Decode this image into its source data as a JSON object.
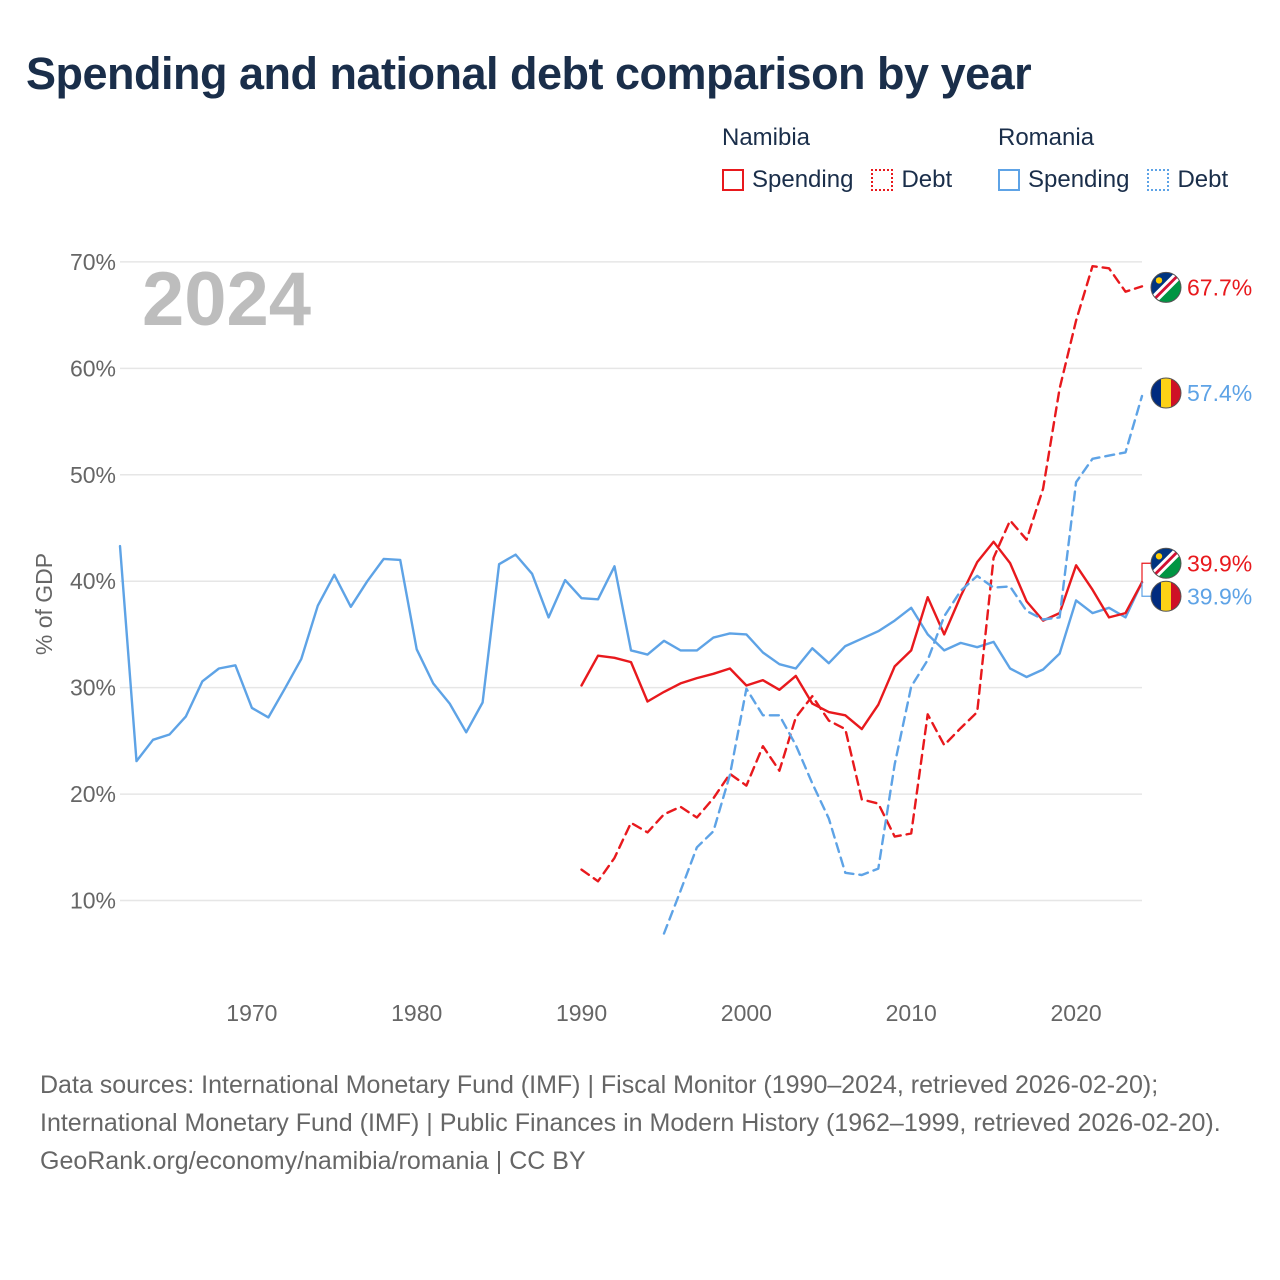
{
  "title": "Spending and national debt comparison by year",
  "legend": {
    "namibia": {
      "country": "Namibia",
      "spending": "Spending",
      "debt": "Debt"
    },
    "romania": {
      "country": "Romania",
      "spending": "Spending",
      "debt": "Debt"
    }
  },
  "colors": {
    "namibia": "#e8191d",
    "romania": "#5ea3e6",
    "grid": "#e6e6e6",
    "axis_text": "#666666",
    "year_watermark": "#bdbdbd"
  },
  "footer": {
    "sources": "Data sources: International Monetary Fund (IMF) | Fiscal Monitor (1990–2024, retrieved 2026-02-20); International Monetary Fund (IMF) | Public Finances in Modern History (1962–1999, retrieved 2026-02-20).",
    "credit": "GeoRank.org/economy/namibia/romania | CC BY"
  },
  "chart_data": {
    "type": "line",
    "year_label": "2024",
    "ylabel": "% of GDP",
    "xlabel": "",
    "xlim": [
      1962,
      2024
    ],
    "ylim": [
      3,
      73
    ],
    "yticks": [
      10,
      20,
      30,
      40,
      50,
      60,
      70
    ],
    "ytick_labels": [
      "10%",
      "20%",
      "30%",
      "40%",
      "50%",
      "60%",
      "70%"
    ],
    "xticks": [
      1970,
      1980,
      1990,
      2000,
      2010,
      2020
    ],
    "xtick_labels": [
      "1970",
      "1980",
      "1990",
      "2000",
      "2010",
      "2020"
    ],
    "end_labels": [
      {
        "series": "Namibia Debt",
        "text": "67.7%"
      },
      {
        "series": "Romania Debt",
        "text": "57.4%"
      },
      {
        "series": "Namibia Spending",
        "text": "39.9%"
      },
      {
        "series": "Romania Spending",
        "text": "39.9%"
      }
    ],
    "series": [
      {
        "name": "Romania Spending",
        "country": "Romania",
        "kind": "spending",
        "style": "solid",
        "x": [
          1962,
          1963,
          1964,
          1965,
          1966,
          1967,
          1968,
          1969,
          1970,
          1971,
          1972,
          1973,
          1974,
          1975,
          1976,
          1977,
          1978,
          1979,
          1980,
          1981,
          1982,
          1983,
          1984,
          1985,
          1986,
          1987,
          1988,
          1989,
          1990,
          1991,
          1992,
          1993,
          1994,
          1995,
          1996,
          1997,
          1998,
          1999,
          2000,
          2001,
          2002,
          2003,
          2004,
          2005,
          2006,
          2007,
          2008,
          2009,
          2010,
          2011,
          2012,
          2013,
          2014,
          2015,
          2016,
          2017,
          2018,
          2019,
          2020,
          2021,
          2022,
          2023,
          2024
        ],
        "values": [
          43.3,
          23.1,
          25.1,
          25.6,
          27.3,
          30.6,
          31.8,
          32.1,
          28.1,
          27.2,
          29.9,
          32.7,
          37.7,
          40.6,
          37.6,
          40.0,
          42.1,
          42.0,
          33.6,
          30.4,
          28.5,
          25.8,
          28.6,
          41.6,
          42.5,
          40.7,
          36.6,
          40.1,
          38.4,
          38.3,
          41.4,
          33.5,
          33.1,
          34.4,
          33.5,
          33.5,
          34.7,
          35.1,
          35.0,
          33.3,
          32.2,
          31.8,
          33.7,
          32.3,
          33.9,
          34.6,
          35.3,
          36.3,
          37.5,
          35.0,
          33.5,
          34.2,
          33.8,
          34.3,
          31.8,
          31.0,
          31.7,
          33.2,
          38.2,
          37.0,
          37.5,
          36.6,
          39.9
        ]
      },
      {
        "name": "Namibia Spending",
        "country": "Namibia",
        "kind": "spending",
        "style": "solid",
        "x": [
          1990,
          1991,
          1992,
          1993,
          1994,
          1995,
          1996,
          1997,
          1998,
          1999,
          2000,
          2001,
          2002,
          2003,
          2004,
          2005,
          2006,
          2007,
          2008,
          2009,
          2010,
          2011,
          2012,
          2013,
          2014,
          2015,
          2016,
          2017,
          2018,
          2019,
          2020,
          2021,
          2022,
          2023,
          2024
        ],
        "values": [
          30.2,
          33.0,
          32.8,
          32.4,
          28.7,
          29.6,
          30.4,
          30.9,
          31.3,
          31.8,
          30.2,
          30.7,
          29.8,
          31.1,
          28.5,
          27.7,
          27.4,
          26.1,
          28.4,
          32.0,
          33.5,
          38.5,
          35.0,
          38.6,
          41.8,
          43.7,
          41.7,
          38.1,
          36.3,
          37.0,
          41.5,
          39.2,
          36.6,
          37.0,
          39.9
        ]
      },
      {
        "name": "Namibia Debt",
        "country": "Namibia",
        "kind": "debt",
        "style": "dashed",
        "x": [
          1990,
          1991,
          1992,
          1993,
          1994,
          1995,
          1996,
          1997,
          1998,
          1999,
          2000,
          2001,
          2002,
          2003,
          2004,
          2005,
          2006,
          2007,
          2008,
          2009,
          2010,
          2011,
          2012,
          2013,
          2014,
          2015,
          2016,
          2017,
          2018,
          2019,
          2020,
          2021,
          2022,
          2023,
          2024
        ],
        "values": [
          12.9,
          11.8,
          14.0,
          17.3,
          16.4,
          18.1,
          18.8,
          17.8,
          19.6,
          21.9,
          20.8,
          24.5,
          22.2,
          27.2,
          29.2,
          26.9,
          26.1,
          19.5,
          19.1,
          16.0,
          16.3,
          27.5,
          24.6,
          26.2,
          27.7,
          42.2,
          45.7,
          43.9,
          48.7,
          58.1,
          64.5,
          69.6,
          69.4,
          67.2,
          67.7
        ]
      },
      {
        "name": "Romania Debt",
        "country": "Romania",
        "kind": "debt",
        "style": "dashed",
        "x": [
          1995,
          1996,
          1997,
          1998,
          1999,
          2000,
          2001,
          2002,
          2003,
          2004,
          2005,
          2006,
          2007,
          2008,
          2009,
          2010,
          2011,
          2012,
          2013,
          2014,
          2015,
          2016,
          2017,
          2018,
          2019,
          2020,
          2021,
          2022,
          2023,
          2024
        ],
        "values": [
          6.9,
          10.9,
          15.0,
          16.5,
          21.8,
          29.9,
          27.4,
          27.4,
          24.6,
          21.0,
          17.7,
          12.6,
          12.4,
          13.0,
          22.8,
          30.1,
          32.6,
          36.7,
          39.1,
          40.5,
          39.4,
          39.5,
          37.2,
          36.4,
          36.6,
          49.3,
          51.5,
          51.8,
          52.1,
          57.4
        ]
      }
    ]
  }
}
